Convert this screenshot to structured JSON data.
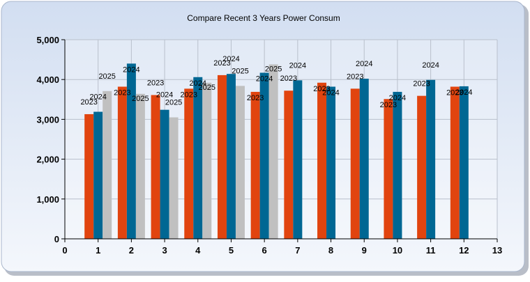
{
  "chart_data": {
    "type": "bar",
    "title": "Compare Recent 3 Years Power Consum",
    "x": [
      1,
      2,
      3,
      4,
      5,
      6,
      7,
      8,
      9,
      10,
      11,
      12
    ],
    "xlim": [
      0,
      13
    ],
    "xticks": [
      "0",
      "1",
      "2",
      "3",
      "4",
      "5",
      "6",
      "7",
      "8",
      "9",
      "10",
      "11",
      "12",
      "13"
    ],
    "ylim": [
      0,
      5000
    ],
    "yticks": [
      "0",
      "1,000",
      "2,000",
      "3,000",
      "4,000",
      "5,000"
    ],
    "ytick_values": [
      0,
      1000,
      2000,
      3000,
      4000,
      5000
    ],
    "grid": true,
    "series": [
      {
        "name": "2023",
        "color": "#e1440f",
        "values": [
          3130,
          3820,
          3610,
          3770,
          4110,
          3690,
          3720,
          3920,
          3770,
          3510,
          3590,
          3820
        ]
      },
      {
        "name": "2024",
        "color": "#006793",
        "values": [
          3190,
          4400,
          3240,
          4060,
          4140,
          4170,
          3980,
          3820,
          4020,
          3690,
          3990,
          3830
        ]
      },
      {
        "name": "2025",
        "color": "#c0c0c0",
        "values": [
          3710,
          3640,
          3050,
          3920,
          3840,
          4380,
          null,
          null,
          null,
          null,
          null,
          null
        ]
      }
    ]
  }
}
